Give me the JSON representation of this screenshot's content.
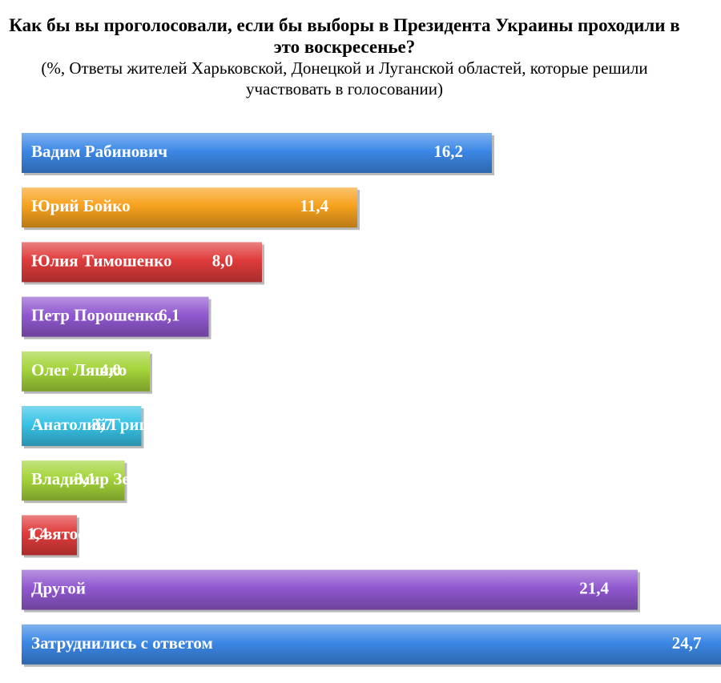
{
  "chart_data": {
    "type": "bar",
    "orientation": "horizontal",
    "title": "Как бы вы проголосовали, если бы выборы в Президента Украины проходили в это воскресенье?",
    "subtitle": "(%, Ответы жителей Харьковской, Донецкой и Луганской областей, которые решили участвовать в голосовании)",
    "categories": [
      "Вадим Рабинович",
      "Юрий Бойко",
      "Юлия Тимошенко",
      "Петр Порошенко",
      "Олег Ляшко",
      "Анатолий Гриценко",
      "Владимир Зеленский",
      "Святослав Вакарчук",
      "Другой",
      "Затруднились с ответом"
    ],
    "values": [
      16.2,
      11.4,
      8.0,
      6.1,
      4.0,
      3.7,
      3.1,
      1.4,
      21.4,
      24.7
    ],
    "value_labels": [
      "16,2",
      "11,4",
      "8,0",
      "6,1",
      "4,0",
      "3,7",
      "3,1",
      "1,4",
      "21,4",
      "24,7"
    ],
    "colors": [
      "#3c88e6",
      "#f7a21e",
      "#e03b3b",
      "#9158d0",
      "#a4d43a",
      "#38c3e6",
      "#a4d43a",
      "#e03b3b",
      "#9158d0",
      "#3c88e6"
    ],
    "xlabel": "",
    "ylabel": "",
    "legend": "none",
    "grid": false
  }
}
